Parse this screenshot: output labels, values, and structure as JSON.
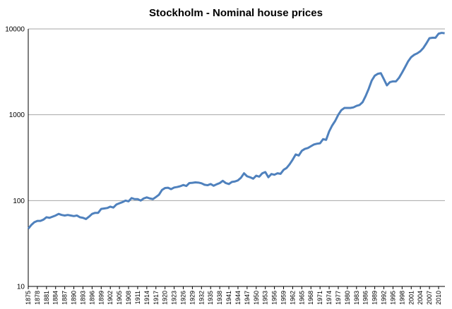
{
  "chart_data": {
    "type": "line",
    "title": "Stockholm - Nominal house prices",
    "x": [
      1875,
      1876,
      1877,
      1878,
      1879,
      1880,
      1881,
      1882,
      1883,
      1884,
      1885,
      1886,
      1887,
      1888,
      1889,
      1890,
      1891,
      1892,
      1893,
      1894,
      1895,
      1896,
      1897,
      1898,
      1899,
      1900,
      1901,
      1902,
      1903,
      1904,
      1905,
      1906,
      1907,
      1908,
      1909,
      1910,
      1911,
      1912,
      1913,
      1914,
      1915,
      1916,
      1917,
      1918,
      1919,
      1920,
      1921,
      1922,
      1923,
      1924,
      1925,
      1926,
      1927,
      1928,
      1929,
      1930,
      1931,
      1932,
      1933,
      1934,
      1935,
      1936,
      1937,
      1938,
      1939,
      1940,
      1941,
      1942,
      1943,
      1944,
      1945,
      1946,
      1947,
      1948,
      1949,
      1950,
      1951,
      1952,
      1953,
      1954,
      1955,
      1956,
      1957,
      1958,
      1959,
      1960,
      1961,
      1962,
      1963,
      1964,
      1965,
      1966,
      1967,
      1968,
      1969,
      1970,
      1971,
      1972,
      1973,
      1974,
      1975,
      1976,
      1977,
      1978,
      1979,
      1980,
      1981,
      1982,
      1983,
      1984,
      1985,
      1986,
      1987,
      1988,
      1989,
      1990,
      1991,
      1992,
      1993,
      1994,
      1995,
      1996,
      1997,
      1998,
      1999,
      2000,
      2001,
      2002,
      2003,
      2004,
      2005,
      2006,
      2007,
      2008,
      2009,
      2010,
      2011,
      2012
    ],
    "series": [
      {
        "name": "Stockholm",
        "color": "#4f81bd",
        "values": [
          47,
          52,
          56,
          58,
          58,
          60,
          64,
          63,
          65,
          67,
          70,
          68,
          67,
          68,
          67,
          66,
          67,
          64,
          63,
          61,
          65,
          70,
          72,
          72,
          80,
          81,
          82,
          85,
          83,
          90,
          93,
          96,
          100,
          98,
          107,
          104,
          104,
          100,
          106,
          109,
          106,
          104,
          110,
          117,
          133,
          140,
          141,
          136,
          142,
          144,
          147,
          152,
          148,
          160,
          161,
          163,
          162,
          159,
          153,
          151,
          156,
          149,
          155,
          160,
          170,
          160,
          156,
          165,
          167,
          172,
          185,
          208,
          192,
          187,
          180,
          195,
          190,
          208,
          215,
          187,
          204,
          200,
          208,
          205,
          228,
          240,
          265,
          300,
          345,
          335,
          380,
          400,
          410,
          430,
          450,
          460,
          465,
          520,
          510,
          640,
          750,
          850,
          1000,
          1130,
          1200,
          1200,
          1200,
          1220,
          1270,
          1300,
          1400,
          1650,
          2000,
          2500,
          2850,
          3000,
          3050,
          2600,
          2200,
          2400,
          2450,
          2450,
          2700,
          3100,
          3600,
          4200,
          4700,
          5000,
          5200,
          5500,
          6000,
          6800,
          7800,
          7900,
          7900,
          8800,
          9000,
          8900
        ]
      }
    ],
    "xlim": [
      1875,
      2012
    ],
    "xticks": [
      1875,
      1878,
      1881,
      1884,
      1887,
      1890,
      1893,
      1896,
      1899,
      1902,
      1905,
      1908,
      1911,
      1914,
      1917,
      1920,
      1923,
      1926,
      1929,
      1932,
      1935,
      1938,
      1941,
      1944,
      1947,
      1950,
      1953,
      1956,
      1959,
      1962,
      1965,
      1968,
      1971,
      1974,
      1977,
      1980,
      1983,
      1986,
      1989,
      1992,
      1995,
      1998,
      2001,
      2004,
      2007,
      2010
    ],
    "ylim": [
      10,
      10000
    ],
    "yticks": [
      10,
      100,
      1000,
      10000
    ],
    "ylog": true,
    "grid": true
  }
}
